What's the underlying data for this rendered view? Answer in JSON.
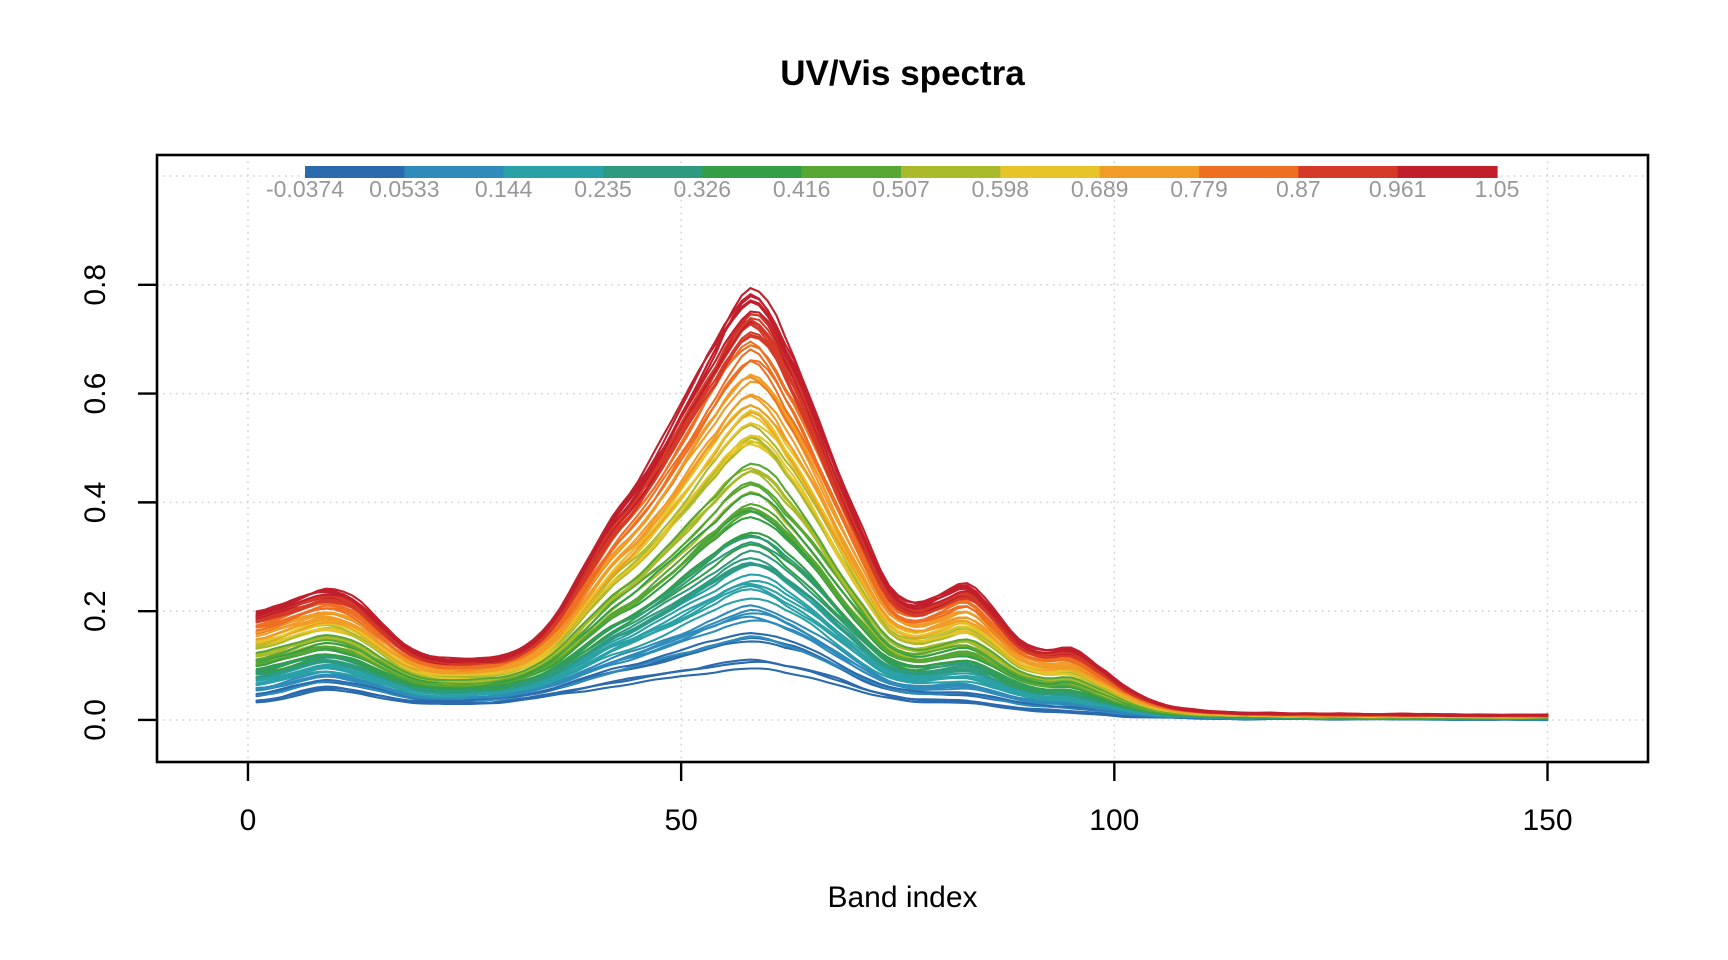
{
  "chart_data": {
    "type": "line",
    "title": "UV/Vis spectra",
    "xlabel": "Band index",
    "ylabel": "",
    "xlim": [
      -10.5,
      161.6
    ],
    "ylim": [
      -0.0773,
      1.0386
    ],
    "x_ticks": [
      0,
      50,
      100,
      150
    ],
    "x_tick_labels": [
      "0",
      "50",
      "100",
      "150"
    ],
    "y_ticks": [
      0.0,
      0.2,
      0.4,
      0.6,
      0.8
    ],
    "y_tick_labels": [
      "0.0",
      "0.2",
      "0.4",
      "0.6",
      "0.8"
    ],
    "grid": {
      "on": true,
      "x_values": [
        0,
        50,
        100,
        150
      ],
      "y_values": [
        0.0,
        0.2,
        0.4,
        0.6,
        0.8,
        1.0
      ],
      "style": "dotted"
    },
    "legend": {
      "position": "top",
      "orientation": "horizontal-colorbar",
      "min": -0.0374,
      "max": 1.05,
      "boundary_values": [
        -0.0374,
        0.0533,
        0.144,
        0.235,
        0.326,
        0.416,
        0.507,
        0.598,
        0.689,
        0.779,
        0.87,
        0.961,
        1.05
      ],
      "boundary_labels": [
        "-0.0374",
        "0.0533",
        "0.144",
        "0.235",
        "0.326",
        "0.416",
        "0.507",
        "0.598",
        "0.689",
        "0.779",
        "0.87",
        "0.961",
        "1.05"
      ],
      "segment_colors": [
        "#2b6aad",
        "#2f8cba",
        "#2aa1a6",
        "#2e9b7f",
        "#339e45",
        "#58a734",
        "#a9ba2c",
        "#e6c42a",
        "#f09c26",
        "#ee6f22",
        "#d53a28",
        "#c01f2b"
      ]
    },
    "band_range": [
      1,
      150
    ],
    "peak_band": 58,
    "max_absorbance": 0.8,
    "profile": {
      "comment": "Envelope control points: low = spectrum at legend min, high = spectrum at legend max; each series interpolates between them.",
      "bands": [
        1,
        3,
        6,
        9,
        12,
        15,
        18,
        21,
        24,
        27,
        30,
        33,
        36,
        39,
        42,
        45,
        48,
        51,
        54,
        56,
        58,
        60,
        62,
        65,
        68,
        71,
        74,
        77,
        80,
        83,
        86,
        89,
        92,
        95,
        98,
        102,
        106,
        110,
        115,
        125,
        135,
        150
      ],
      "low": [
        0.032,
        0.036,
        0.048,
        0.056,
        0.05,
        0.042,
        0.034,
        0.029,
        0.028,
        0.03,
        0.034,
        0.04,
        0.047,
        0.054,
        0.062,
        0.068,
        0.075,
        0.081,
        0.088,
        0.092,
        0.094,
        0.092,
        0.087,
        0.079,
        0.066,
        0.05,
        0.04,
        0.034,
        0.032,
        0.03,
        0.025,
        0.02,
        0.016,
        0.013,
        0.01,
        0.006,
        0.004,
        0.003,
        0.002,
        0.002,
        0.001,
        0.001
      ],
      "high": [
        0.2,
        0.21,
        0.228,
        0.243,
        0.228,
        0.185,
        0.14,
        0.118,
        0.112,
        0.114,
        0.122,
        0.15,
        0.205,
        0.29,
        0.375,
        0.44,
        0.52,
        0.61,
        0.7,
        0.762,
        0.8,
        0.772,
        0.705,
        0.595,
        0.468,
        0.35,
        0.245,
        0.215,
        0.233,
        0.252,
        0.206,
        0.15,
        0.131,
        0.133,
        0.1,
        0.054,
        0.027,
        0.017,
        0.013,
        0.011,
        0.01,
        0.009
      ]
    },
    "series_values": [
      0.62,
      0.05,
      0.91,
      0.33,
      1.02,
      0.18,
      0.74,
      0.445,
      0.985,
      0.27,
      0.555,
      0.81,
      0.125,
      0.695,
      0.38,
      0.945,
      0.215,
      0.505,
      1.05,
      0.065,
      0.76,
      0.415,
      0.88,
      0.155,
      0.59,
      0.315,
      0.975,
      0.025,
      0.72,
      0.465,
      0.845,
      0.19,
      0.535,
      0.995,
      0.095,
      0.655,
      0.36,
      0.915,
      0.245,
      0.575,
      0.785,
      0.01,
      0.685,
      0.43,
      1.035,
      0.14,
      0.52,
      0.865,
      0.295,
      0.625,
      -0.02,
      0.935,
      0.205,
      0.485,
      0.755,
      0.11,
      0.645,
      0.395,
      0.895,
      0.26,
      0.545,
      1.01,
      0.04,
      0.71,
      0.35,
      0.955,
      0.175,
      0.565,
      0.825,
      0.08,
      0.675,
      0.455,
      0.905,
      0.23,
      0.515,
      0.775,
      -0.005,
      0.635,
      0.405,
      0.965,
      0.16,
      0.585,
      0.835,
      0.13,
      0.7,
      0.475,
      0.925,
      0.285
    ],
    "colors": {
      "background": "#ffffff",
      "axis": "#000000",
      "text": "#000000",
      "grid": "#d0d0d0",
      "legend_text": "#989898"
    }
  }
}
